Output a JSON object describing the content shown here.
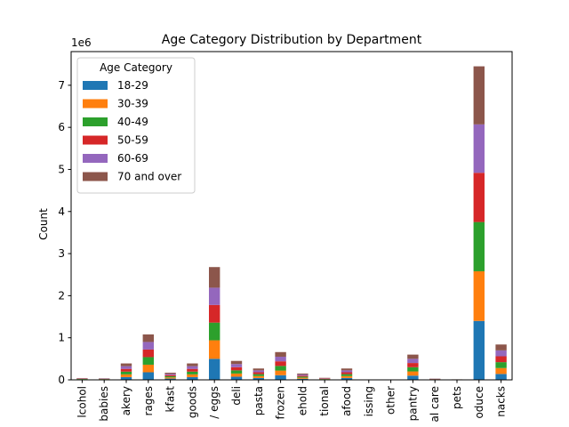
{
  "chart_data": {
    "type": "bar",
    "stacked": true,
    "title": "Age Category Distribution by Department",
    "xlabel": "",
    "ylabel": "Count",
    "y_offset_label": "1e6",
    "ylim": [
      0,
      7.8
    ],
    "y_ticks": [
      0,
      1,
      2,
      3,
      4,
      5,
      6,
      7
    ],
    "y_unit_multiplier": 1000000,
    "grid": false,
    "legend": {
      "title": "Age Category",
      "placement": "top-left"
    },
    "categories": [
      "alcohol",
      "babies",
      "bakery",
      "beverages",
      "breakfast",
      "canned goods",
      "dairy eggs",
      "deli",
      "dry goods pasta",
      "frozen",
      "household",
      "international",
      "meat seafood",
      "missing",
      "other",
      "pantry",
      "personal care",
      "pets",
      "produce",
      "snacks"
    ],
    "category_labels": [
      "lcohol",
      "babies",
      "akery",
      "rages",
      "kfast",
      "goods",
      "/ eggs",
      "deli",
      "pasta",
      "frozen",
      "ehold",
      "tional",
      "afood",
      "issing",
      "other",
      "pantry",
      "al care",
      "pets",
      "oduce",
      "nacks"
    ],
    "series": [
      {
        "name": "18-29",
        "color": "#1f77b4",
        "values": [
          0.007,
          0.006,
          0.065,
          0.18,
          0.03,
          0.065,
          0.5,
          0.075,
          0.045,
          0.11,
          0.025,
          0.008,
          0.045,
          0.001,
          0.001,
          0.1,
          0.005,
          0.002,
          1.4,
          0.14
        ]
      },
      {
        "name": "30-39",
        "color": "#ff7f0e",
        "values": [
          0.007,
          0.006,
          0.065,
          0.18,
          0.028,
          0.065,
          0.44,
          0.075,
          0.045,
          0.11,
          0.025,
          0.008,
          0.045,
          0.001,
          0.001,
          0.1,
          0.005,
          0.002,
          1.18,
          0.14
        ]
      },
      {
        "name": "40-49",
        "color": "#2ca02c",
        "values": [
          0.007,
          0.006,
          0.065,
          0.18,
          0.028,
          0.065,
          0.42,
          0.075,
          0.045,
          0.11,
          0.025,
          0.008,
          0.045,
          0.001,
          0.001,
          0.1,
          0.005,
          0.002,
          1.17,
          0.14
        ]
      },
      {
        "name": "50-59",
        "color": "#d62728",
        "values": [
          0.007,
          0.006,
          0.065,
          0.18,
          0.028,
          0.065,
          0.42,
          0.075,
          0.045,
          0.11,
          0.025,
          0.008,
          0.045,
          0.001,
          0.001,
          0.1,
          0.005,
          0.002,
          1.17,
          0.14
        ]
      },
      {
        "name": "60-69",
        "color": "#9467bd",
        "values": [
          0.007,
          0.006,
          0.065,
          0.18,
          0.028,
          0.065,
          0.41,
          0.075,
          0.045,
          0.11,
          0.025,
          0.008,
          0.045,
          0.001,
          0.001,
          0.1,
          0.005,
          0.002,
          1.15,
          0.14
        ]
      },
      {
        "name": "70 and over",
        "color": "#8c564b",
        "values": [
          0.008,
          0.007,
          0.065,
          0.18,
          0.028,
          0.065,
          0.49,
          0.075,
          0.045,
          0.11,
          0.025,
          0.008,
          0.045,
          0.001,
          0.001,
          0.1,
          0.005,
          0.002,
          1.38,
          0.14
        ]
      }
    ]
  }
}
